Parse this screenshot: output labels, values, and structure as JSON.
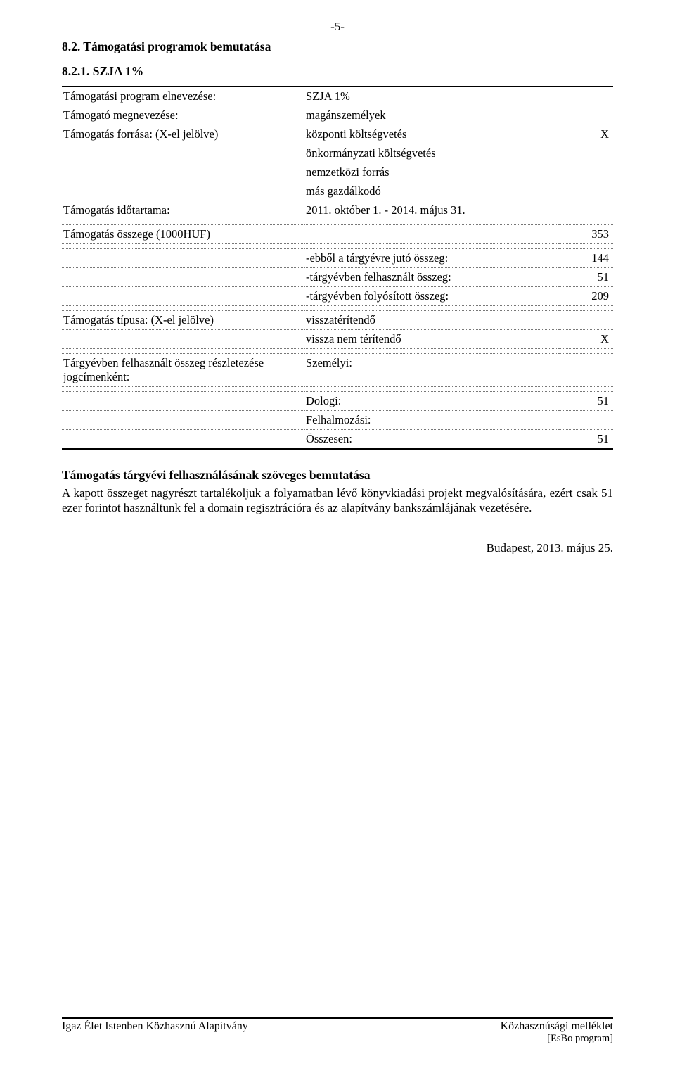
{
  "page_number": "-5-",
  "section_heading": "8.2. Támogatási programok bemutatása",
  "subsection_heading": "8.2.1. SZJA 1%",
  "separator_color": "#000000",
  "dotted_color": "#777777",
  "background_color": "#ffffff",
  "text_color": "#000000",
  "font_family": "Times New Roman",
  "body_fontsize_pt": 13,
  "table": {
    "column_widths_pct": [
      44,
      46,
      10
    ],
    "rows": [
      {
        "label": "Támogatási program elnevezése:",
        "value": "SZJA 1%",
        "extra": ""
      },
      {
        "label": "Támogató megnevezése:",
        "value": "magánszemélyek",
        "extra": ""
      },
      {
        "label": "Támogatás forrása: (X-el jelölve)",
        "value": "központi költségvetés",
        "extra": "X"
      },
      {
        "label": "",
        "value": "önkormányzati költségvetés",
        "extra": ""
      },
      {
        "label": "",
        "value": "nemzetközi forrás",
        "extra": ""
      },
      {
        "label": "",
        "value": "más gazdálkodó",
        "extra": ""
      },
      {
        "label": "Támogatás időtartama:",
        "value": "2011. október 1. - 2014. május 31.",
        "extra": ""
      },
      {
        "label": "Támogatás összege  (1000HUF)",
        "value": "",
        "extra": "353"
      },
      {
        "label": "",
        "value": "-ebből a tárgyévre jutó összeg:",
        "extra": "144"
      },
      {
        "label": "",
        "value": "-tárgyévben felhasznált összeg:",
        "extra": "51"
      },
      {
        "label": "",
        "value": "-tárgyévben folyósított összeg:",
        "extra": "209"
      },
      {
        "label": "Támogatás típusa: (X-el jelölve)",
        "value": "visszatérítendő",
        "extra": ""
      },
      {
        "label": "",
        "value": "vissza nem térítendő",
        "extra": "X"
      },
      {
        "label": "Tárgyévben felhasznált összeg részletezése jogcímenként:",
        "value": "Személyi:",
        "extra": ""
      },
      {
        "label": "",
        "value": "Dologi:",
        "extra": "51"
      },
      {
        "label": "",
        "value": "Felhalmozási:",
        "extra": ""
      },
      {
        "label": "",
        "value": "Összesen:",
        "extra": "51"
      }
    ],
    "solid_separator_after": [
      6,
      7,
      10,
      12,
      13
    ]
  },
  "text_block_title": "Támogatás tárgyévi felhasználásának szöveges bemutatása",
  "text_block_body": "A kapott összeget nagyrészt tartalékoljuk a folyamatban lévő könyvkiadási projekt megvalósítására, ezért csak 51 ezer forintot használtunk fel a domain regisztrációra és az alapítvány bankszámlájának vezetésére.",
  "date_place": "Budapest, 2013. május 25.",
  "footer_left": "Igaz Élet Istenben Közhasznú Alapítvány",
  "footer_right": "Közhasznúsági melléklet",
  "footer_sub": "[EsBo program]"
}
